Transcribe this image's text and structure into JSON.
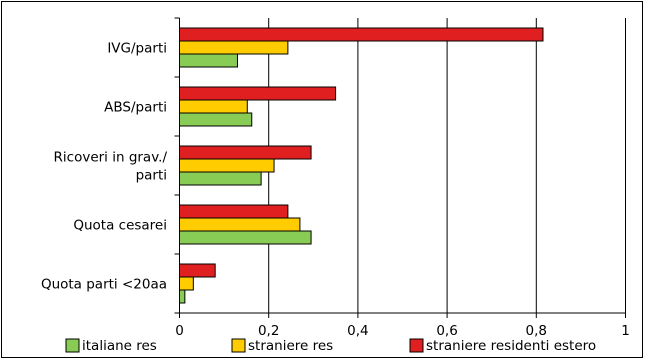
{
  "chart_data": {
    "type": "bar",
    "orientation": "horizontal",
    "categories": [
      [
        "IVG/parti"
      ],
      [
        "ABS/parti"
      ],
      [
        "Ricoveri in grav./",
        "parti"
      ],
      [
        "Quota cesarei"
      ],
      [
        "Quota parti <20aa"
      ]
    ],
    "series": [
      {
        "name": "straniere residenti estero",
        "color": "#e02020",
        "values": [
          0.815,
          0.35,
          0.295,
          0.243,
          0.08
        ]
      },
      {
        "name": "straniere res",
        "color": "#ffcc00",
        "values": [
          0.243,
          0.152,
          0.212,
          0.27,
          0.031
        ]
      },
      {
        "name": "italiane res",
        "color": "#88cc55",
        "values": [
          0.13,
          0.162,
          0.183,
          0.295,
          0.012
        ]
      }
    ],
    "legend_order": [
      2,
      1,
      0
    ],
    "xlim": [
      0,
      1
    ],
    "xticks": [
      0,
      0.2,
      0.4,
      0.6,
      0.8,
      1
    ],
    "xtick_labels": [
      "0",
      "0,2",
      "0,4",
      "0,6",
      "0,8",
      "1"
    ],
    "grid": "vertical",
    "legend_placement": "bottom",
    "title": "",
    "xlabel": "",
    "ylabel": ""
  }
}
